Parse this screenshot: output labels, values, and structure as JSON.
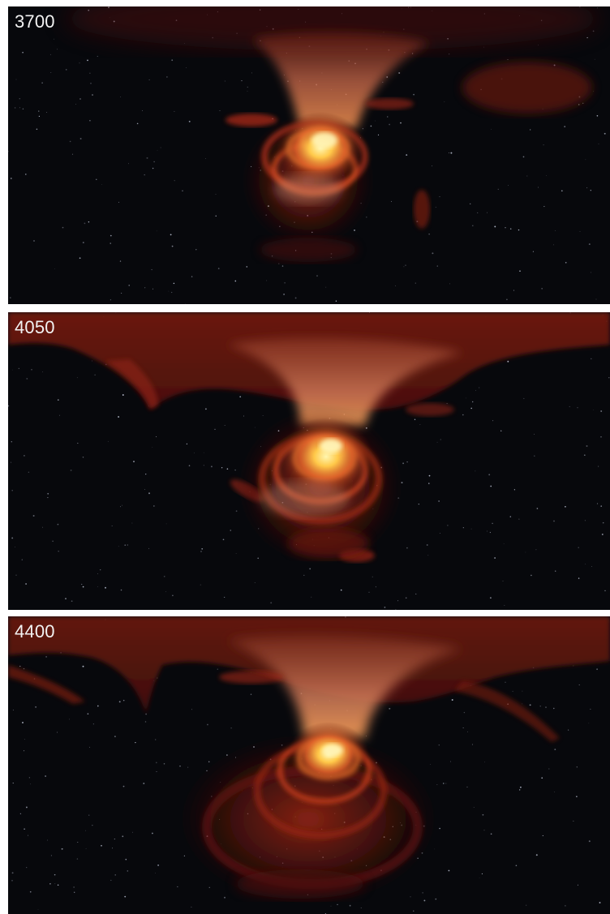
{
  "frames": [
    {
      "label": "3700"
    },
    {
      "label": "4050"
    },
    {
      "label": "4400"
    }
  ],
  "colors": {
    "background_space": "#07080c",
    "gas_dark_red": "#5a1209",
    "gas_red": "#a12816",
    "gas_orange": "#e0622a",
    "core_yellow": "#ffe07a",
    "separator": "#ffffff",
    "label_text": "#f2f2f2"
  }
}
